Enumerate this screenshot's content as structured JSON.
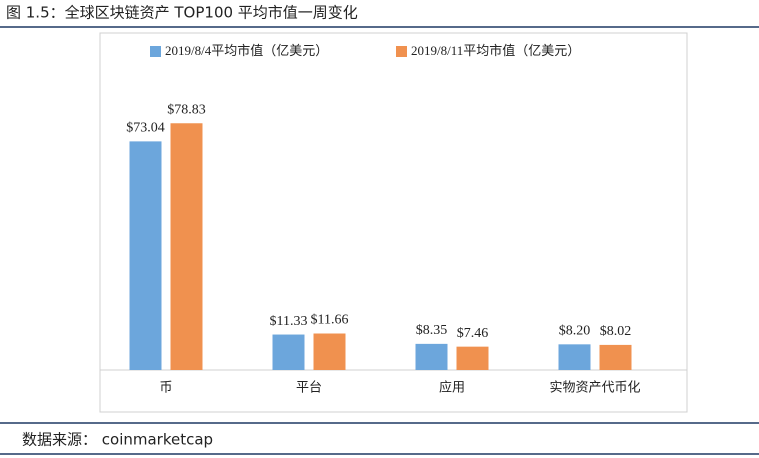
{
  "chart_data": {
    "type": "bar",
    "title": "图 1.5：全球区块链资产 TOP100 平均市值一周变化",
    "source": "数据来源： coinmarketcap",
    "categories": [
      "币",
      "平台",
      "应用",
      "实物资产代币化"
    ],
    "series": [
      {
        "name": "2019/8/4平均市值（亿美元）",
        "color": "#6ca6dc",
        "values": [
          73.04,
          11.33,
          8.35,
          8.2
        ],
        "value_labels": [
          "$73.04",
          "$11.33",
          "$8.35",
          "$8.20"
        ]
      },
      {
        "name": "2019/8/11平均市值（亿美元）",
        "color": "#f0914f",
        "values": [
          78.83,
          11.66,
          7.46,
          8.02
        ],
        "value_labels": [
          "$78.83",
          "$11.66",
          "$7.46",
          "$8.02"
        ]
      }
    ]
  }
}
